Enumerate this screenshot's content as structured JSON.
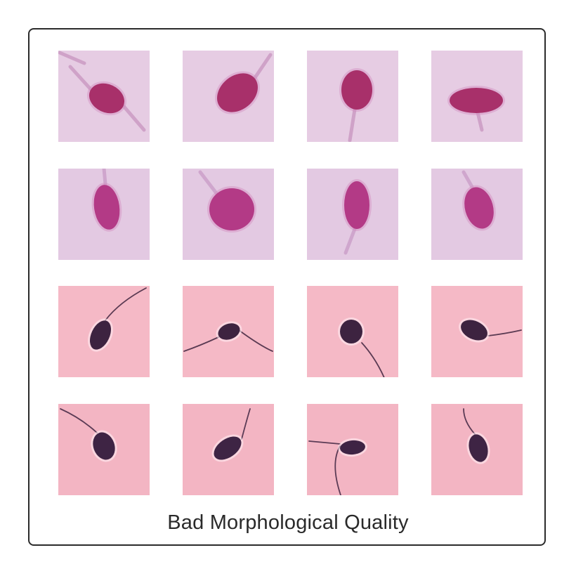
{
  "caption": "Bad Morphological Quality",
  "palette": {
    "row_backgrounds": [
      "#e6cce3",
      "#e3c9e2",
      "#f5b9c6",
      "#f3b5c3"
    ],
    "row_heads": [
      "#a8306a",
      "#b33a86",
      "#3d2340",
      "#3e2444"
    ],
    "row_tails": [
      "#cfa2c8",
      "#cfa6cd",
      "#5a3a52",
      "#5b3b55"
    ]
  },
  "grid": {
    "rows": 4,
    "cols": 4,
    "tiles": [
      {
        "row": 0,
        "col": 0,
        "name": "sperm-tile-r1-c1"
      },
      {
        "row": 0,
        "col": 1,
        "name": "sperm-tile-r1-c2"
      },
      {
        "row": 0,
        "col": 2,
        "name": "sperm-tile-r1-c3"
      },
      {
        "row": 0,
        "col": 3,
        "name": "sperm-tile-r1-c4"
      },
      {
        "row": 1,
        "col": 0,
        "name": "sperm-tile-r2-c1"
      },
      {
        "row": 1,
        "col": 1,
        "name": "sperm-tile-r2-c2"
      },
      {
        "row": 1,
        "col": 2,
        "name": "sperm-tile-r2-c3"
      },
      {
        "row": 1,
        "col": 3,
        "name": "sperm-tile-r2-c4"
      },
      {
        "row": 2,
        "col": 0,
        "name": "sperm-tile-r3-c1"
      },
      {
        "row": 2,
        "col": 1,
        "name": "sperm-tile-r3-c2"
      },
      {
        "row": 2,
        "col": 2,
        "name": "sperm-tile-r3-c3"
      },
      {
        "row": 2,
        "col": 3,
        "name": "sperm-tile-r3-c4"
      },
      {
        "row": 3,
        "col": 0,
        "name": "sperm-tile-r4-c1"
      },
      {
        "row": 3,
        "col": 1,
        "name": "sperm-tile-r4-c2"
      },
      {
        "row": 3,
        "col": 2,
        "name": "sperm-tile-r4-c3"
      },
      {
        "row": 3,
        "col": 3,
        "name": "sperm-tile-r4-c4"
      }
    ]
  }
}
